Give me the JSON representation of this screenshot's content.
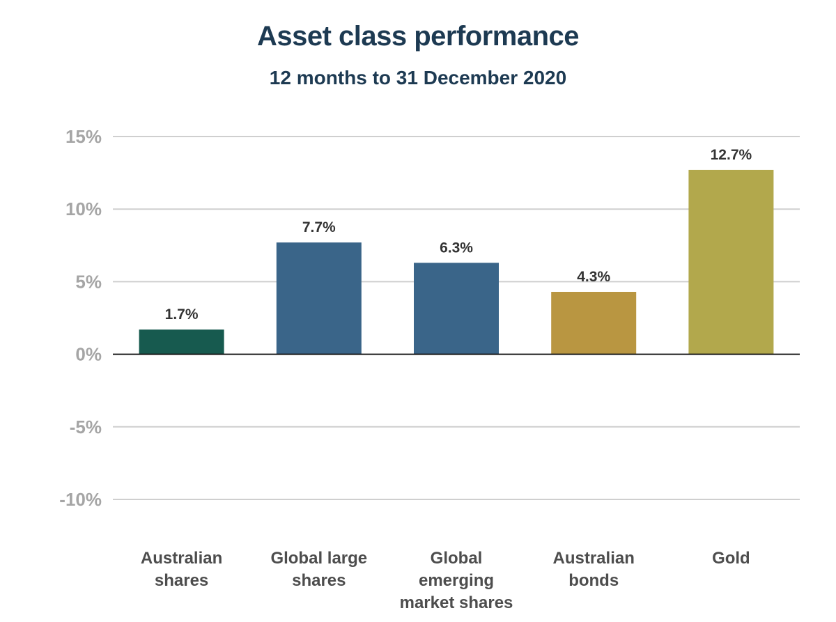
{
  "chart_data": {
    "type": "bar",
    "title": "Asset class performance",
    "subtitle": "12 months to 31 December 2020",
    "categories": [
      [
        "Australian",
        "shares"
      ],
      [
        "Global large",
        "shares"
      ],
      [
        "Global",
        "emerging",
        "market shares"
      ],
      [
        "Australian",
        "bonds"
      ],
      [
        "Gold"
      ]
    ],
    "values": [
      1.7,
      7.7,
      6.3,
      4.3,
      12.7
    ],
    "value_labels": [
      "1.7%",
      "7.7%",
      "6.3%",
      "4.3%",
      "12.7%"
    ],
    "colors": [
      "#175a4f",
      "#3a6589",
      "#3a6589",
      "#b99641",
      "#b2a84c"
    ],
    "ylim": [
      -10,
      15
    ],
    "yticks": [
      15,
      10,
      5,
      0,
      -5,
      -10
    ],
    "ytick_labels": [
      "15%",
      "10%",
      "5%",
      "0%",
      "-5%",
      "-10%"
    ],
    "grid": true,
    "xlabel": "",
    "ylabel": ""
  }
}
